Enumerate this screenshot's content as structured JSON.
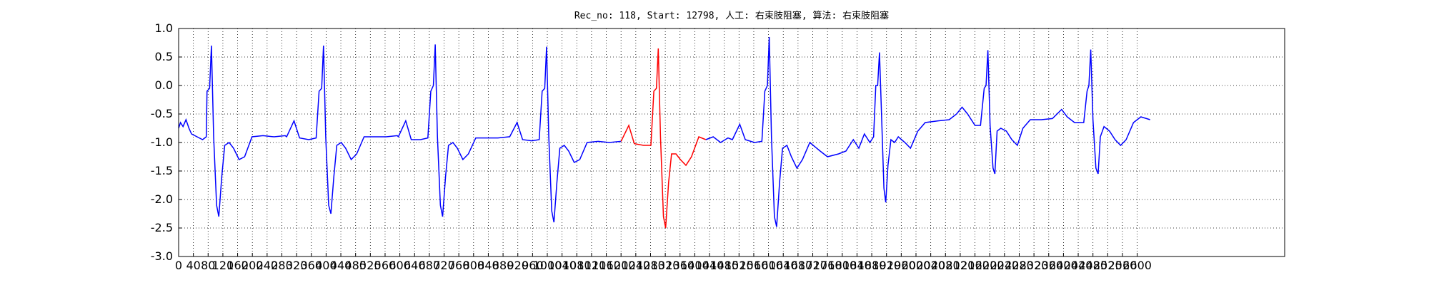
{
  "chart_data": {
    "type": "line",
    "title": "Rec_no: 118, Start: 12798, 人工: 右束肢阻塞, 算法: 右束肢阻塞",
    "xlim": [
      0,
      3000
    ],
    "ylim": [
      -3,
      1
    ],
    "xticks": [
      0,
      40,
      80,
      120,
      160,
      200,
      240,
      280,
      320,
      360,
      400,
      440,
      480,
      520,
      560,
      600,
      640,
      680,
      720,
      760,
      800,
      840,
      880,
      920,
      960,
      1000,
      1040,
      1080,
      1120,
      1160,
      1200,
      1240,
      1280,
      1320,
      1360,
      1400,
      1440,
      1480,
      1520,
      1560,
      1600,
      1640,
      1680,
      1720,
      1760,
      1800,
      1840,
      1880,
      1920,
      1960,
      2000,
      2040,
      2080,
      2120,
      2160,
      2200,
      2240,
      2280,
      2320,
      2360,
      2400,
      2440,
      2480,
      2520,
      2560,
      2600
    ],
    "yticks": [
      {
        "value": 1,
        "label": "1.0"
      },
      0.5,
      {
        "value": 0,
        "label": "0.0"
      },
      -0.5,
      {
        "value": -1,
        "label": "-1.0"
      },
      -1.5,
      {
        "value": -2,
        "label": "-2.0"
      },
      -2.5,
      {
        "value": -3,
        "label": "-3.0"
      }
    ],
    "grid": true,
    "series": [
      {
        "color": "#0000ff",
        "x": [
          0,
          5,
          12,
          20,
          28,
          35,
          50,
          65,
          75,
          77,
          84,
          89,
          95,
          103,
          109,
          117,
          125,
          137,
          149,
          164,
          179,
          199,
          229,
          259,
          289,
          293,
          313,
          328,
          353,
          373,
          381,
          388,
          393,
          399,
          407,
          413,
          421,
          429,
          441,
          453,
          468,
          483,
          503,
          533,
          563,
          593,
          596,
          616,
          631,
          656,
          676,
          684,
          691,
          696,
          702,
          710,
          716,
          724,
          732,
          744,
          756,
          771,
          786,
          806,
          836,
          866,
          896,
          898,
          918,
          933,
          958,
          978,
          986,
          993,
          998,
          1004,
          1012,
          1018,
          1026,
          1034,
          1046,
          1058,
          1073,
          1088,
          1108,
          1138,
          1168,
          1200
        ],
        "values": [
          -0.75,
          -0.65,
          -0.72,
          -0.6,
          -0.75,
          -0.85,
          -0.9,
          -0.95,
          -0.9,
          -0.1,
          -0.05,
          0.7,
          -0.9,
          -2.1,
          -2.3,
          -1.6,
          -1.05,
          -1.0,
          -1.1,
          -1.3,
          -1.25,
          -0.9,
          -0.88,
          -0.9,
          -0.88,
          -0.9,
          -0.62,
          -0.92,
          -0.95,
          -0.92,
          -0.1,
          -0.05,
          0.7,
          -0.9,
          -2.1,
          -2.25,
          -1.6,
          -1.05,
          -1.0,
          -1.1,
          -1.3,
          -1.2,
          -0.9,
          -0.9,
          -0.9,
          -0.88,
          -0.9,
          -0.62,
          -0.95,
          -0.95,
          -0.92,
          -0.1,
          0.0,
          0.72,
          -0.9,
          -2.1,
          -2.3,
          -1.6,
          -1.05,
          -1.0,
          -1.1,
          -1.3,
          -1.2,
          -0.92,
          -0.92,
          -0.92,
          -0.9,
          -0.9,
          -0.65,
          -0.95,
          -0.97,
          -0.95,
          -0.1,
          -0.05,
          0.68,
          -0.9,
          -2.2,
          -2.4,
          -1.7,
          -1.1,
          -1.05,
          -1.15,
          -1.35,
          -1.3,
          -1.0,
          -0.98,
          -1.0,
          -0.98
        ]
      },
      {
        "color": "#ff0000",
        "x": [
          1200,
          1221,
          1236,
          1261,
          1281,
          1289,
          1296,
          1301,
          1307,
          1315,
          1321,
          1329,
          1337,
          1349,
          1361,
          1376,
          1391,
          1411,
          1430
        ],
        "values": [
          -0.98,
          -0.7,
          -1.02,
          -1.05,
          -1.05,
          -0.1,
          -0.05,
          0.65,
          -0.9,
          -2.3,
          -2.5,
          -1.7,
          -1.2,
          -1.2,
          -1.3,
          -1.4,
          -1.25,
          -0.9,
          -0.95
        ]
      },
      {
        "color": "#0000ff",
        "x": [
          1430,
          1450,
          1470,
          1490,
          1502,
          1522,
          1537,
          1562,
          1582,
          1590,
          1597,
          1602,
          1608,
          1616,
          1622,
          1630,
          1638,
          1650,
          1662,
          1677,
          1692,
          1712,
          1740,
          1760,
          1790,
          1810,
          1830,
          1845,
          1860,
          1875,
          1885,
          1891,
          1896,
          1901,
          1907,
          1913,
          1918,
          1924,
          1932,
          1942,
          1952,
          1970,
          1985,
          2005,
          2025,
          2060,
          2090,
          2110,
          2125,
          2140,
          2160,
          2175,
          2185,
          2190,
          2195,
          2201,
          2209,
          2214,
          2220,
          2230,
          2245,
          2260,
          2275,
          2290,
          2310,
          2340,
          2370,
          2395,
          2410,
          2430,
          2455,
          2464,
          2469,
          2474,
          2480,
          2488,
          2494,
          2500,
          2510,
          2525,
          2540,
          2555,
          2570,
          2590,
          2610,
          2625,
          2635
        ],
        "values": [
          -0.95,
          -0.9,
          -1.0,
          -0.92,
          -0.95,
          -0.68,
          -0.95,
          -1.0,
          -0.98,
          -0.1,
          0.0,
          0.85,
          -0.9,
          -2.3,
          -2.48,
          -1.7,
          -1.1,
          -1.05,
          -1.25,
          -1.45,
          -1.3,
          -1.0,
          -1.15,
          -1.25,
          -1.2,
          -1.15,
          -0.95,
          -1.1,
          -0.85,
          -1.0,
          -0.9,
          0.0,
          0.0,
          0.58,
          -0.6,
          -1.8,
          -2.05,
          -1.4,
          -0.95,
          -1.0,
          -0.9,
          -1.0,
          -1.1,
          -0.8,
          -0.65,
          -0.62,
          -0.6,
          -0.5,
          -0.38,
          -0.5,
          -0.7,
          -0.7,
          -0.05,
          0.0,
          0.62,
          -0.7,
          -1.45,
          -1.55,
          -0.8,
          -0.75,
          -0.8,
          -0.95,
          -1.05,
          -0.75,
          -0.6,
          -0.6,
          -0.58,
          -0.42,
          -0.55,
          -0.65,
          -0.65,
          -0.1,
          0.0,
          0.63,
          -0.6,
          -1.45,
          -1.55,
          -0.9,
          -0.72,
          -0.8,
          -0.95,
          -1.05,
          -0.95,
          -0.65,
          -0.55,
          -0.58,
          -0.6
        ]
      }
    ]
  }
}
